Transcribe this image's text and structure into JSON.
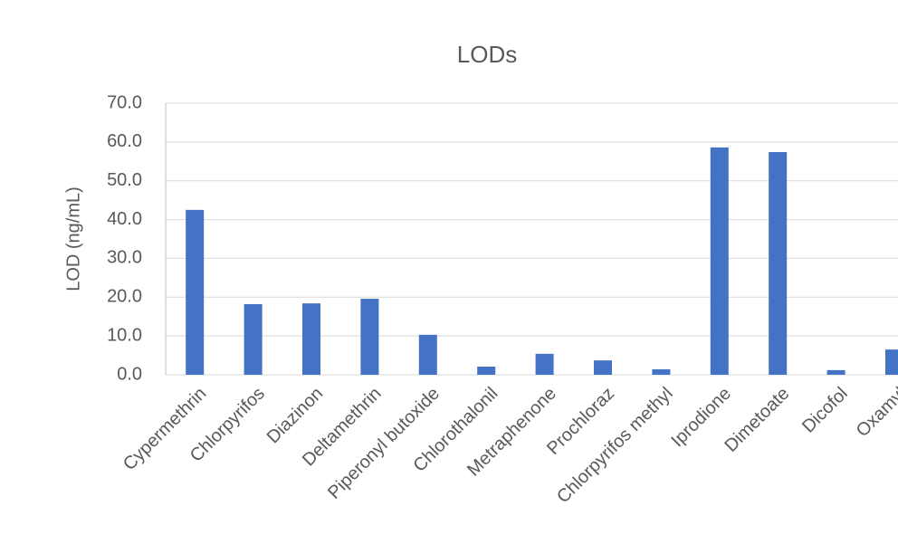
{
  "chart_data": {
    "type": "bar",
    "title": "LODs",
    "y_label": "LOD (ng/mL)",
    "categories": [
      "Cypermethrin",
      "Chlorpyrifos",
      "Diazinon",
      "Deltamethrin",
      "Piperonyl butoxide",
      "Chlorothalonil",
      "Metraphenone",
      "Prochloraz",
      "Chlorpyrifos methyl",
      "Iprodione",
      "Dimetoate",
      "Dicofol",
      "Oxamyl"
    ],
    "values": [
      42.5,
      18.2,
      18.4,
      19.6,
      10.3,
      2.1,
      5.4,
      3.7,
      1.4,
      58.6,
      57.4,
      1.2,
      6.5
    ],
    "color": "#4472c4",
    "ylim": [
      0,
      70
    ],
    "yticks": [
      {
        "value": 0,
        "label": "0.0"
      },
      {
        "value": 10,
        "label": "10.0"
      },
      {
        "value": 20,
        "label": "20.0"
      },
      {
        "value": 30,
        "label": "30.0"
      },
      {
        "value": 40,
        "label": "40.0"
      },
      {
        "value": 50,
        "label": "50.0"
      },
      {
        "value": 60,
        "label": "60.0"
      },
      {
        "value": 70,
        "label": "70.0"
      }
    ],
    "grid": true
  }
}
